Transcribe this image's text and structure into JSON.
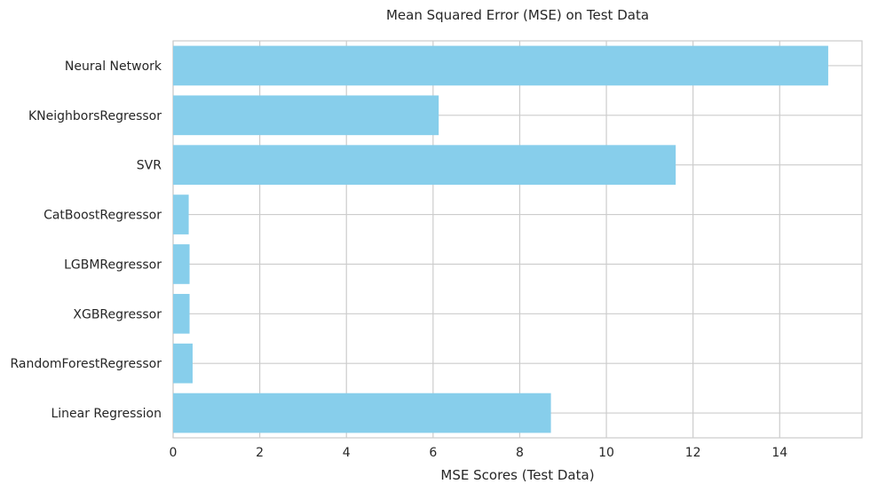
{
  "chart_data": {
    "type": "bar",
    "orientation": "horizontal",
    "title": "Mean Squared Error (MSE) on Test Data",
    "xlabel": "MSE Scores (Test Data)",
    "ylabel": "",
    "categories": [
      "Linear Regression",
      "RandomForestRegressor",
      "XGBRegressor",
      "LGBMRegressor",
      "CatBoostRegressor",
      "SVR",
      "KNeighborsRegressor",
      "Neural Network"
    ],
    "values": [
      8.72,
      0.45,
      0.38,
      0.38,
      0.36,
      11.6,
      6.13,
      15.12
    ],
    "xlim": [
      0,
      15.9
    ],
    "xticks": [
      0,
      2,
      4,
      6,
      8,
      10,
      12,
      14
    ],
    "grid": true,
    "bar_color": "#87ceeb",
    "grid_color": "#cccccc",
    "background_color": "#ffffff"
  }
}
